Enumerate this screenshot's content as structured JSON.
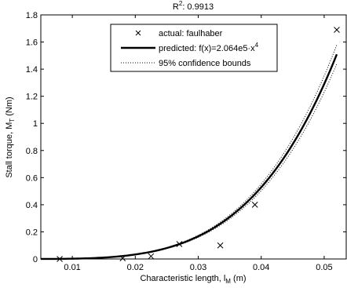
{
  "chart_data": {
    "type": "scatter",
    "title": {
      "prefix": "R",
      "sup": "2",
      "rest": ": 0.9913"
    },
    "xlabel": {
      "main": "Characteristic length, l",
      "sub": "M",
      "rest": " (m)"
    },
    "ylabel": {
      "main": "Stall torque, M",
      "sub": "T",
      "rest": " (Nm)"
    },
    "xlim": [
      0.005,
      0.0535
    ],
    "ylim": [
      0,
      1.8
    ],
    "xticks": [
      0.01,
      0.02,
      0.03,
      0.04,
      0.05
    ],
    "xtick_labels": [
      "0.01",
      "0.02",
      "0.03",
      "0.04",
      "0.05"
    ],
    "yticks": [
      0,
      0.2,
      0.4,
      0.6,
      0.8,
      1.0,
      1.2,
      1.4,
      1.6,
      1.8
    ],
    "ytick_labels": [
      "0",
      "0.2",
      "0.4",
      "0.6",
      "0.8",
      "1",
      "1.2",
      "1.4",
      "1.6",
      "1.8"
    ],
    "grid": false,
    "legend_position": "top-center",
    "series": [
      {
        "name": "actual: faulhaber",
        "style": "marker-x",
        "x": [
          0.008,
          0.018,
          0.0225,
          0.027,
          0.0335,
          0.039,
          0.052
        ],
        "y": [
          0.0,
          0.005,
          0.02,
          0.11,
          0.1,
          0.4,
          1.69
        ]
      },
      {
        "name": {
          "main": "predicted: f(x)=2.064e5·x",
          "sup": "4"
        },
        "style": "solid-thick",
        "formula": {
          "coefficient": 206400,
          "exponent": 4
        },
        "x_range": [
          0.005,
          0.052
        ]
      },
      {
        "name": "95% confidence bounds",
        "style": "dotted",
        "bounds": [
          {
            "coefficient": 216000,
            "exponent": 4
          },
          {
            "coefficient": 196800,
            "exponent": 4
          }
        ],
        "x_range": [
          0.005,
          0.052
        ]
      }
    ],
    "colors": {
      "line": "#000000",
      "background": "#ffffff"
    }
  }
}
